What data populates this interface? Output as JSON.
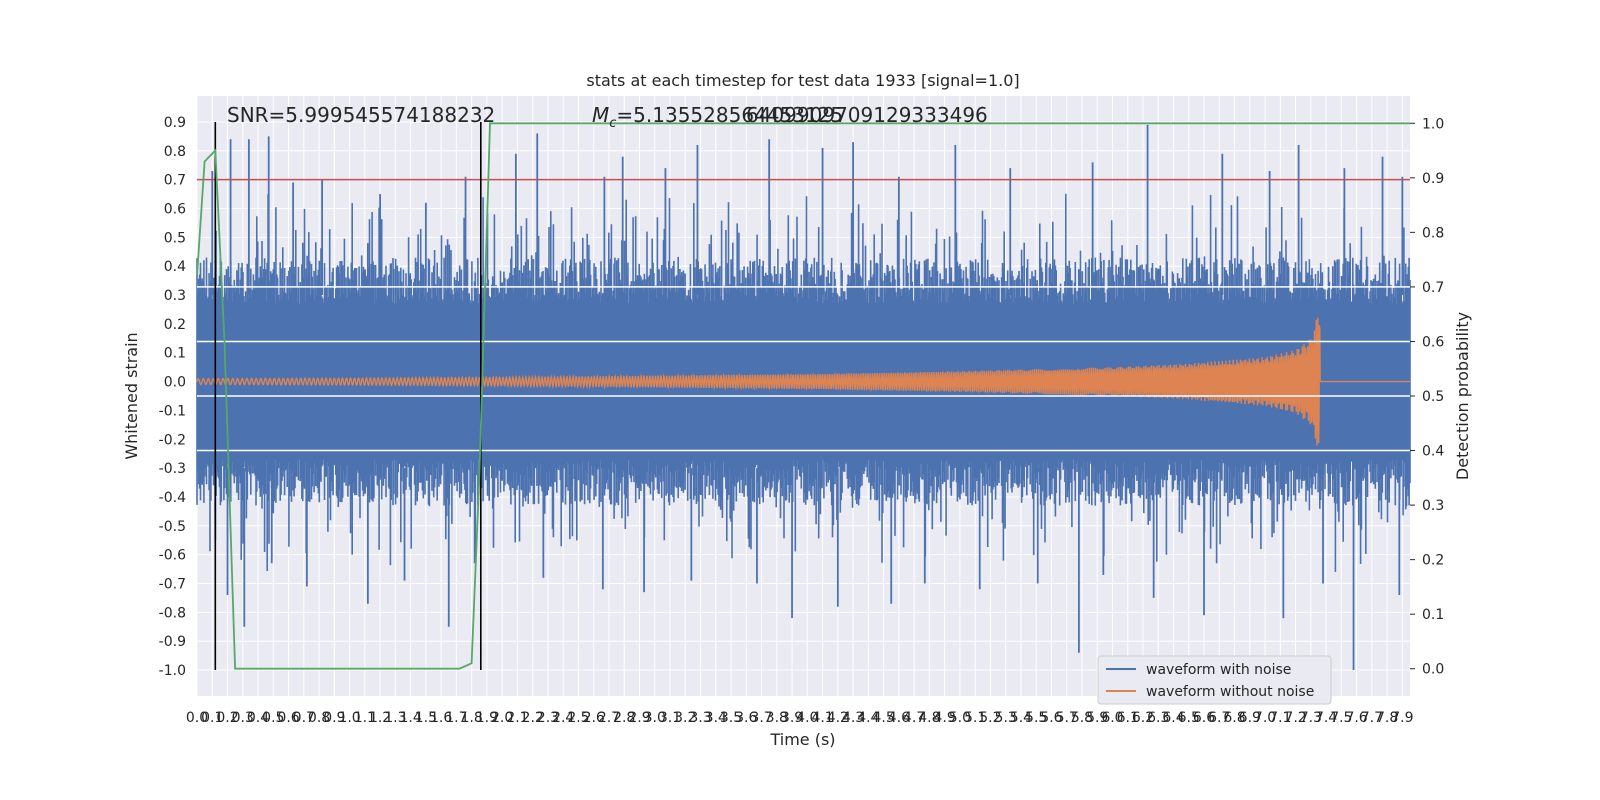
{
  "chart_data": {
    "type": "line",
    "title": "stats at each timestep for test data 1933 [signal=1.0]",
    "xlabel": "Time (s)",
    "ylabel": "Whitened strain",
    "y2label": "Detection probability",
    "xlim": [
      0.0,
      7.95
    ],
    "ylim": [
      -1.09,
      0.99
    ],
    "y2lim": [
      -0.05,
      1.05
    ],
    "x_ticks": [
      0.0,
      0.1,
      0.2,
      0.3,
      0.4,
      0.5,
      0.6,
      0.7,
      0.8,
      0.9,
      1.0,
      1.1,
      1.2,
      1.3,
      1.4,
      1.5,
      1.6,
      1.7,
      1.8,
      1.9,
      2.0,
      2.1,
      2.2,
      2.3,
      2.4,
      2.5,
      2.6,
      2.7,
      2.8,
      2.9,
      3.0,
      3.1,
      3.2,
      3.3,
      3.4,
      3.5,
      3.6,
      3.7,
      3.8,
      3.9,
      4.0,
      4.1,
      4.2,
      4.3,
      4.4,
      4.5,
      4.6,
      4.7,
      4.8,
      4.9,
      5.0,
      5.1,
      5.2,
      5.3,
      5.4,
      5.5,
      5.6,
      5.7,
      5.8,
      5.9,
      6.0,
      6.1,
      6.2,
      6.3,
      6.4,
      6.5,
      6.6,
      6.7,
      6.8,
      6.9,
      7.0,
      7.1,
      7.2,
      7.3,
      7.4,
      7.5,
      7.6,
      7.7,
      7.8,
      7.9
    ],
    "y_ticks": [
      -1.0,
      -0.9,
      -0.8,
      -0.7,
      -0.6,
      -0.5,
      -0.4,
      -0.3,
      -0.2,
      -0.1,
      0.0,
      0.1,
      0.2,
      0.3,
      0.4,
      0.5,
      0.6,
      0.7,
      0.8,
      0.9
    ],
    "y2_ticks": [
      0.0,
      0.1,
      0.2,
      0.3,
      0.4,
      0.5,
      0.6,
      0.7,
      0.8,
      0.9,
      1.0
    ],
    "annotations": {
      "snr": "SNR=5.999545574188232",
      "mc_prefix": "M",
      "mc_sub": "c",
      "mc_value": "=5.135528564453125",
      "overlap": "6409909709129333496"
    },
    "threshold": {
      "value": 0.7,
      "color": "#c44e52"
    },
    "vlines": [
      0.12,
      1.86
    ],
    "hbands_y2": [
      0.4,
      0.5,
      0.6,
      0.7
    ],
    "series": [
      {
        "name": "waveform with noise",
        "color": "#4c72b0",
        "band_upper": [
          0.35,
          0.35,
          0.3,
          0.33,
          0.35,
          0.3,
          0.3,
          0.3,
          0.3,
          0.3,
          0.3,
          0.3,
          0.3,
          0.3,
          0.3,
          0.3,
          0.3,
          0.3,
          0.3,
          0.3,
          0.3,
          0.3,
          0.3,
          0.3,
          0.3,
          0.3,
          0.3,
          0.3,
          0.3,
          0.3,
          0.3,
          0.3,
          0.3,
          0.3,
          0.3,
          0.3,
          0.3,
          0.3,
          0.3,
          0.3,
          0.3
        ],
        "band_lower": [
          -0.35,
          -0.35,
          -0.3,
          -0.33,
          -0.35,
          -0.3,
          -0.3,
          -0.3,
          -0.3,
          -0.3,
          -0.3,
          -0.3,
          -0.3,
          -0.3,
          -0.3,
          -0.3,
          -0.3,
          -0.3,
          -0.3,
          -0.3,
          -0.3,
          -0.3,
          -0.3,
          -0.3,
          -0.3,
          -0.3,
          -0.3,
          -0.3,
          -0.3,
          -0.3,
          -0.3,
          -0.3,
          -0.3,
          -0.3,
          -0.3,
          -0.3,
          -0.3,
          -0.3,
          -0.3,
          -0.3,
          -0.3
        ],
        "peaks": [
          [
            0.1,
            0.73
          ],
          [
            0.22,
            0.84
          ],
          [
            0.34,
            0.84
          ],
          [
            0.47,
            0.85
          ],
          [
            0.63,
            0.69
          ],
          [
            0.82,
            0.7
          ],
          [
            1.2,
            0.65
          ],
          [
            1.5,
            0.62
          ],
          [
            1.76,
            0.71
          ],
          [
            2.09,
            0.79
          ],
          [
            2.23,
            0.86
          ],
          [
            2.67,
            0.71
          ],
          [
            2.79,
            0.78
          ],
          [
            3.07,
            0.74
          ],
          [
            3.28,
            0.82
          ],
          [
            3.75,
            0.84
          ],
          [
            4.1,
            0.81
          ],
          [
            4.3,
            0.83
          ],
          [
            4.6,
            0.71
          ],
          [
            4.97,
            0.82
          ],
          [
            5.33,
            0.74
          ],
          [
            5.87,
            0.76
          ],
          [
            6.23,
            0.89
          ],
          [
            6.72,
            0.79
          ],
          [
            7.03,
            0.73
          ],
          [
            7.22,
            0.82
          ],
          [
            7.52,
            0.74
          ],
          [
            7.77,
            0.78
          ],
          [
            7.9,
            0.71
          ]
        ],
        "troughs": [
          [
            0.12,
            -0.55
          ],
          [
            0.2,
            -0.74
          ],
          [
            0.31,
            -0.85
          ],
          [
            0.49,
            -0.63
          ],
          [
            0.72,
            -0.71
          ],
          [
            1.12,
            -0.77
          ],
          [
            1.36,
            -0.69
          ],
          [
            1.65,
            -0.85
          ],
          [
            1.82,
            -0.63
          ],
          [
            2.27,
            -0.68
          ],
          [
            2.66,
            -0.72
          ],
          [
            2.93,
            -0.73
          ],
          [
            3.24,
            -0.69
          ],
          [
            3.67,
            -0.7
          ],
          [
            3.9,
            -0.82
          ],
          [
            4.2,
            -0.78
          ],
          [
            4.55,
            -0.77
          ],
          [
            4.77,
            -0.7
          ],
          [
            5.13,
            -0.72
          ],
          [
            5.51,
            -0.7
          ],
          [
            5.78,
            -0.94
          ],
          [
            5.94,
            -0.67
          ],
          [
            6.27,
            -0.75
          ],
          [
            6.6,
            -0.81
          ],
          [
            7.12,
            -0.82
          ],
          [
            7.38,
            -0.7
          ],
          [
            7.58,
            -1.0
          ],
          [
            7.88,
            -0.74
          ]
        ]
      },
      {
        "name": "waveform without noise",
        "color": "#dd8452",
        "envelope": [
          [
            0.0,
            0.01
          ],
          [
            1.0,
            0.012
          ],
          [
            2.0,
            0.015
          ],
          [
            3.0,
            0.02
          ],
          [
            4.0,
            0.026
          ],
          [
            5.0,
            0.036
          ],
          [
            6.0,
            0.05
          ],
          [
            6.5,
            0.062
          ],
          [
            7.0,
            0.085
          ],
          [
            7.2,
            0.11
          ],
          [
            7.3,
            0.15
          ],
          [
            7.36,
            0.26
          ],
          [
            7.37,
            0.0
          ],
          [
            7.95,
            0.0
          ]
        ]
      },
      {
        "name": "detection probability",
        "color": "#55a868",
        "axis": "y2",
        "x": [
          0.0,
          0.05,
          0.12,
          0.18,
          0.25,
          1.72,
          1.8,
          1.85,
          1.92,
          7.95
        ],
        "values": [
          0.72,
          0.93,
          0.95,
          0.6,
          0.0,
          0.0,
          0.01,
          0.35,
          1.0,
          1.0
        ]
      }
    ],
    "legend": {
      "position": "lower-right",
      "entries": [
        "waveform with noise",
        "waveform without noise"
      ]
    },
    "colors": {
      "plot_bg": "#eaeaf2",
      "grid": "#ffffff",
      "vline": "#000000"
    }
  }
}
